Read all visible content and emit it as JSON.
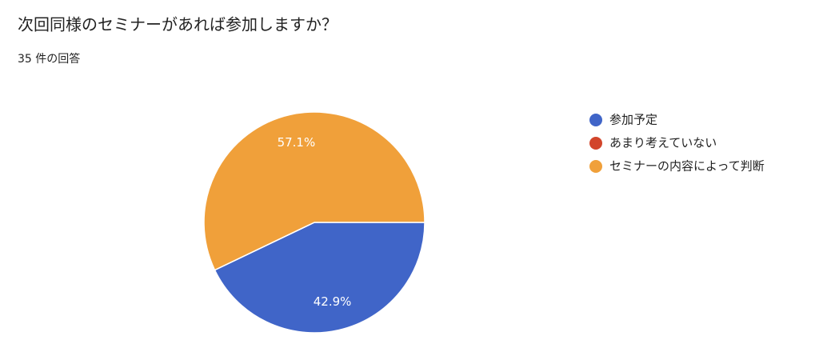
{
  "chart_data": {
    "type": "pie",
    "title": "次回同様のセミナーがあれば参加しますか？",
    "subtitle": "35 件の回答",
    "categories": [
      "参加予定",
      "あまり考えていない",
      "セミナーの内容によって判断"
    ],
    "values": [
      42.9,
      0,
      57.1
    ],
    "value_labels": [
      "42.9%",
      null,
      "57.1%"
    ],
    "colors": [
      "#4065c8",
      "#d2452b",
      "#f0a03a"
    ]
  }
}
